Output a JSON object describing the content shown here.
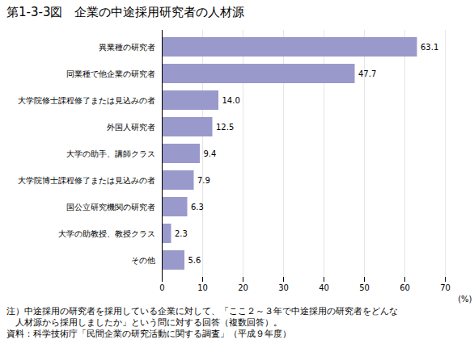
{
  "chart_data": {
    "type": "bar",
    "orientation": "horizontal",
    "title": "第1-3-3図　企業の中途採用研究者の人材源",
    "categories": [
      "その他",
      "大学の助教授、教授クラス",
      "国公立研究機関の研究者",
      "大学院博士課程修了または見込みの者",
      "大学の助手、講師クラス",
      "外国人研究者",
      "大学院修士課程修了または見込みの者",
      "同業種で他企業の研究者",
      "異業種の研究者"
    ],
    "values": [
      5.6,
      2.3,
      6.3,
      7.9,
      9.4,
      12.5,
      14.0,
      47.7,
      63.1
    ],
    "value_labels": [
      "5.6",
      "2.3",
      "6.3",
      "7.9",
      "9.4",
      "12.5",
      "14.0",
      "47.7",
      "63.1"
    ],
    "color": "#9999cc",
    "xlabel": "(%)",
    "xlim": [
      0,
      70
    ],
    "xticks": [
      0,
      10,
      20,
      30,
      40,
      50,
      60,
      70
    ],
    "grid": true,
    "data_labels": true,
    "annotations": [
      "注）中途採用の研究者を採用している企業に対して、「ここ２～３年で中途採用の研究者をどんな",
      "　人材源から採用しましたか」という問に対する回答（複数回答）。",
      "資料：科学技術庁「民間企業の研究活動に関する調査」（平成９年度）"
    ]
  }
}
